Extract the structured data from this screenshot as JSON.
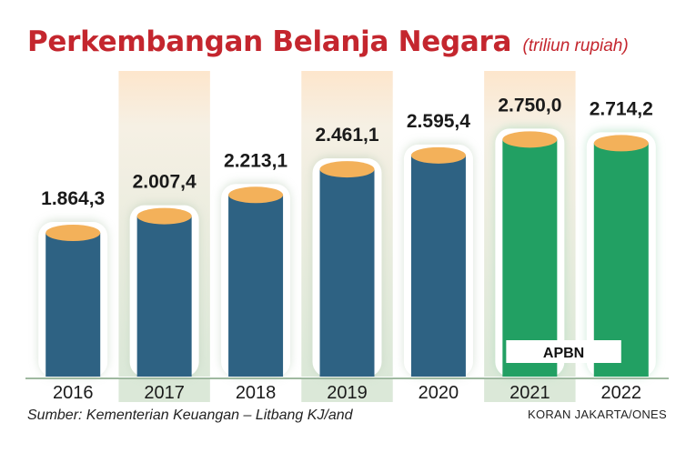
{
  "title": "Perkembangan Belanja Negara",
  "unit": "(triliun rupiah)",
  "source": "Sumber: Kementerian Keuangan – Litbang KJ/and",
  "credit": "KORAN JAKARTA/ONES",
  "colors": {
    "title": "#c4262e",
    "bar_realized": "#2e6283",
    "bar_budget": "#22a063",
    "bar_top": "#f3b15a",
    "column_shade": "#dbe8d8",
    "column_top": "#fde6cc"
  },
  "chart_data": {
    "type": "bar",
    "categories": [
      "2016",
      "2017",
      "2018",
      "2019",
      "2020",
      "2021",
      "2022"
    ],
    "values": [
      1864.3,
      2007.4,
      2213.1,
      2461.1,
      2595.4,
      2750.0,
      2714.2
    ],
    "value_labels": [
      "1.864,3",
      "2.007,4",
      "2.213,1",
      "2.461,1",
      "2.595,4",
      "2.750,0",
      "2.714,2"
    ],
    "budget_years": [
      "2021",
      "2022"
    ],
    "annotation": "APBN",
    "ylim": [
      0,
      3000
    ]
  }
}
